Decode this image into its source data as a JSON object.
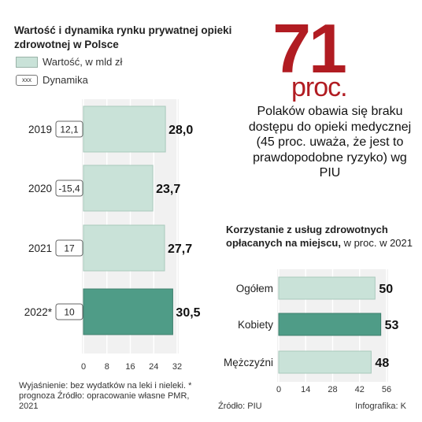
{
  "left_title": "Wartość  i dynamika rynku prywatnej opieki zdrowotnej w Polsce",
  "legend": {
    "value_label": "Wartość, w mld zł",
    "dynamics_label": "Dynamika",
    "dynamics_box_text": "xxx"
  },
  "headline": {
    "number": "71",
    "unit": "proc.",
    "quote": "Polaków obawia się braku dostępu do opieki medycznej (45 proc. uważa, że jest to prawdopodobne ryzyko) wg PIU"
  },
  "right_subtitle": {
    "bold": "Korzystanie z usług zdrowotnych opłacanych na miejscu,",
    "normal": " w proc. w 2021"
  },
  "footnote": "Wyjaśnienie: bez wydatków na leki i nieleki. * prognoza Źródło: opracowanie własne PMR, 2021",
  "source_right_chart": "Źródło: PIU",
  "credit": "Infografika: K",
  "colors": {
    "bar_light": "#c9e2d8",
    "bar_dark": "#4f9c87",
    "accent": "#b11c22"
  },
  "chart_data": [
    {
      "type": "bar",
      "orientation": "horizontal",
      "categories": [
        "2019",
        "2020",
        "2021",
        "2022*"
      ],
      "series": [
        {
          "name": "Wartość, w mld zł",
          "values": [
            28.0,
            23.7,
            27.7,
            30.5
          ],
          "value_labels": [
            "28,0",
            "23,7",
            "27,7",
            "30,5"
          ]
        },
        {
          "name": "Dynamika",
          "values": [
            12.1,
            -15.4,
            17,
            10
          ],
          "value_labels": [
            "12,1",
            "-15,4",
            "17",
            "10"
          ]
        }
      ],
      "highlight_index": 3,
      "xlim": [
        0,
        32
      ],
      "xticks": [
        "0",
        "8",
        "16",
        "24",
        "32"
      ],
      "grid": true
    },
    {
      "type": "bar",
      "orientation": "horizontal",
      "categories": [
        "Ogółem",
        "Kobiety",
        "Mężczyźni"
      ],
      "values": [
        50,
        53,
        48
      ],
      "value_labels": [
        "50",
        "53",
        "48"
      ],
      "highlight_index": 1,
      "xlim": [
        0,
        56
      ],
      "xticks": [
        "0",
        "14",
        "28",
        "42",
        "56"
      ],
      "grid": true
    }
  ]
}
